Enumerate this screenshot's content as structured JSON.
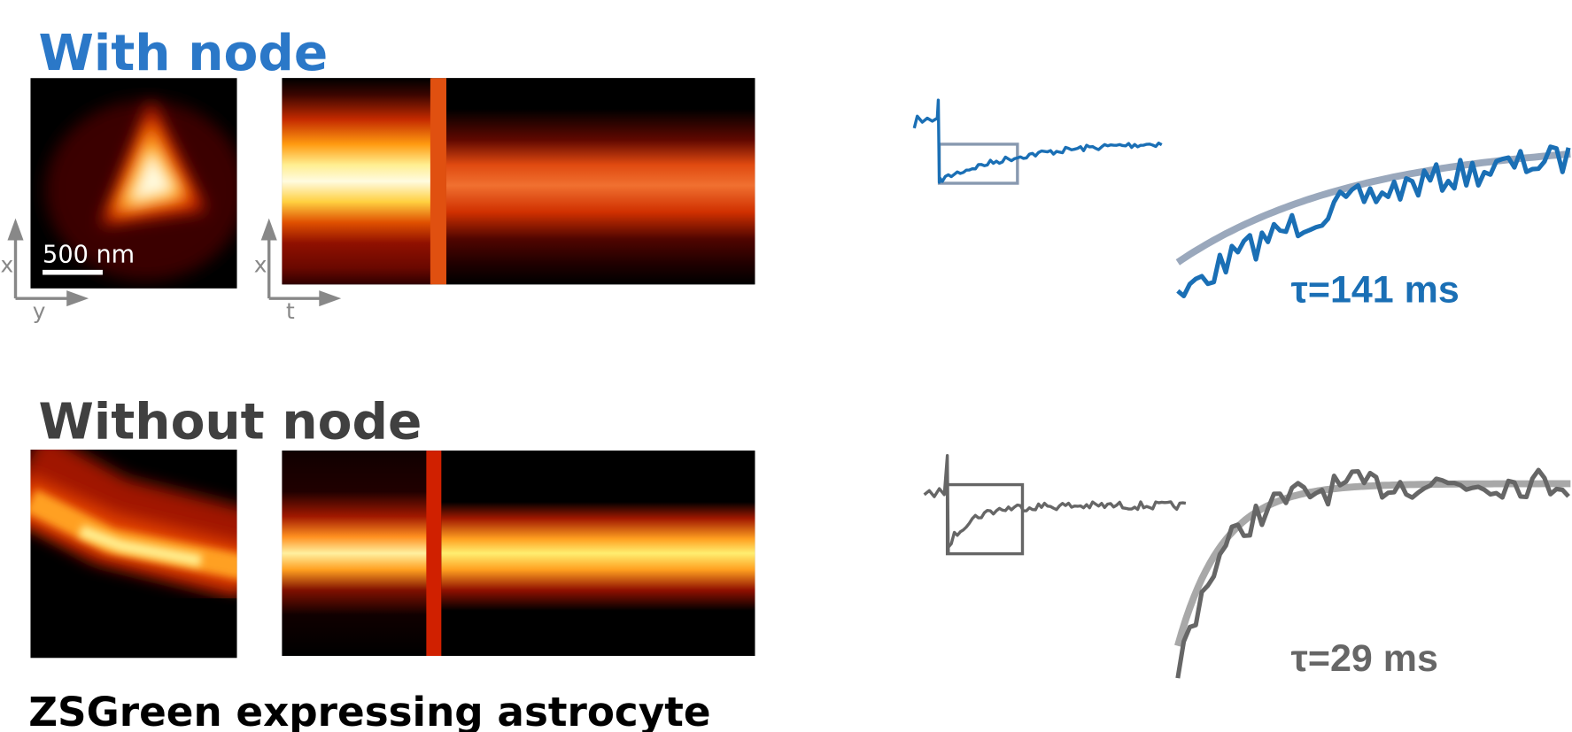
{
  "panels": [
    {
      "title": "With node",
      "tau_label": "τ=141 ms"
    },
    {
      "title": "Without node",
      "tau_label": "τ=29 ms"
    }
  ],
  "scale_bar": "500 nm",
  "axes": {
    "image": {
      "vertical": "x",
      "horizontal": "y"
    },
    "kymograph": {
      "vertical": "x",
      "horizontal": "t"
    }
  },
  "caption": "ZSGreen expressing astrocyte"
}
